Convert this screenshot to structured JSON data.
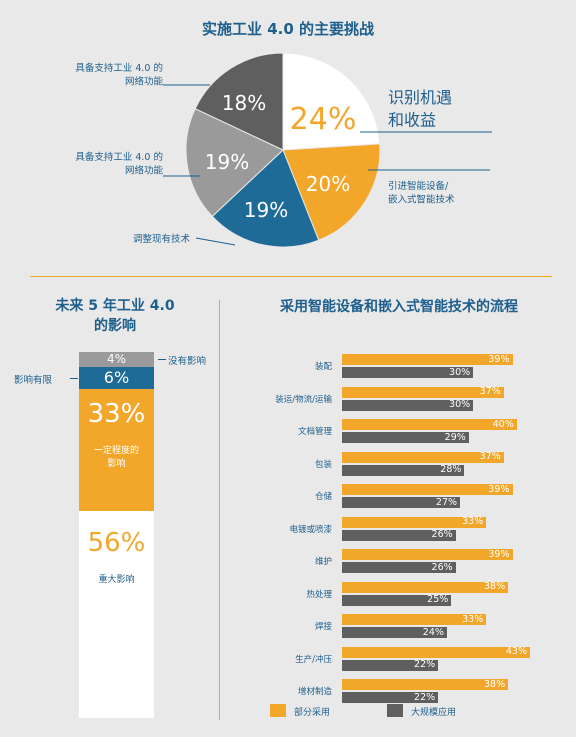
{
  "pie": {
    "title": "实施工业 4.0 的主要挑战",
    "segments": [
      {
        "label": "识别机遇 和收益",
        "label_lines": [
          "识别机遇",
          "和收益"
        ],
        "value": 24,
        "pct_text": "24%",
        "color": "#ffffff",
        "text_color": "#f2a72b"
      },
      {
        "label": "引进智能设备/ 嵌入式智能技术",
        "label_lines": [
          "引进智能设备/",
          "嵌入式智能技术"
        ],
        "value": 20,
        "pct_text": "20%",
        "color": "#f2a72b",
        "text_color": "#ffffff"
      },
      {
        "label": "调整现有技术",
        "label_lines": [
          "调整现有技术"
        ],
        "value": 19,
        "pct_text": "19%",
        "color": "#1f6b98",
        "text_color": "#ffffff"
      },
      {
        "label": "具备支持工业 4.0 的 网络功能",
        "label_lines": [
          "具备支持工业 4.0 的",
          "网络功能"
        ],
        "value": 19,
        "pct_text": "19%",
        "color": "#9a9a9a",
        "text_color": "#ffffff"
      },
      {
        "label": "具备支持工业 4.0 的 网络功能",
        "label_lines": [
          "具备支持工业 4.0 的",
          "网络功能"
        ],
        "value": 18,
        "pct_text": "18%",
        "color": "#5f5f5f",
        "text_color": "#ffffff"
      }
    ]
  },
  "stack": {
    "title_line1": "未来 5 年工业 4.0",
    "title_line2": "的影响",
    "segments": [
      {
        "label": "没有影响",
        "value": 4,
        "pct_text": "4%",
        "color": "#9a9a9a"
      },
      {
        "label": "影响有限",
        "value": 6,
        "pct_text": "6%",
        "color": "#1f6b98"
      },
      {
        "label": "一定程度的影响",
        "label_lines": [
          "一定程度的",
          "影响"
        ],
        "value": 33,
        "pct_text": "33%",
        "color": "#f2a72b"
      },
      {
        "label": "重大影响",
        "value": 56,
        "pct_text": "56%",
        "color": "#ffffff"
      }
    ]
  },
  "bars": {
    "title": "采用智能设备和嵌入式智能技术的流程",
    "legend": [
      {
        "label": "部分采用",
        "color": "#f2a72b"
      },
      {
        "label": "大规模应用",
        "color": "#5f5f5f"
      }
    ]
  },
  "chart_data": [
    {
      "type": "pie",
      "title": "实施工业 4.0 的主要挑战",
      "labels": [
        "识别机遇和收益",
        "引进智能设备/嵌入式智能技术",
        "调整现有技术",
        "具备支持工业 4.0 的网络功能",
        "具备支持工业 4.0 的网络功能"
      ],
      "values": [
        24,
        20,
        19,
        19,
        18
      ]
    },
    {
      "type": "bar",
      "stacked": true,
      "title": "未来 5 年工业 4.0 的影响",
      "categories": [
        "没有影响",
        "影响有限",
        "一定程度的影响",
        "重大影响"
      ],
      "values": [
        4,
        6,
        33,
        56
      ]
    },
    {
      "type": "bar",
      "orientation": "horizontal",
      "title": "采用智能设备和嵌入式智能技术的流程",
      "categories": [
        "装配",
        "装运/物流/运输",
        "文档管理",
        "包装",
        "仓储",
        "电镀或喷漆",
        "维护",
        "热处理",
        "焊接",
        "生产/冲压",
        "增材制造"
      ],
      "series": [
        {
          "name": "部分采用",
          "values": [
            39,
            37,
            40,
            37,
            39,
            33,
            39,
            38,
            33,
            43,
            38
          ]
        },
        {
          "name": "大规模应用",
          "values": [
            30,
            30,
            29,
            28,
            27,
            26,
            26,
            25,
            24,
            22,
            22
          ]
        }
      ],
      "xlim": [
        0,
        45
      ],
      "grid": false,
      "legend": "bottom"
    }
  ]
}
